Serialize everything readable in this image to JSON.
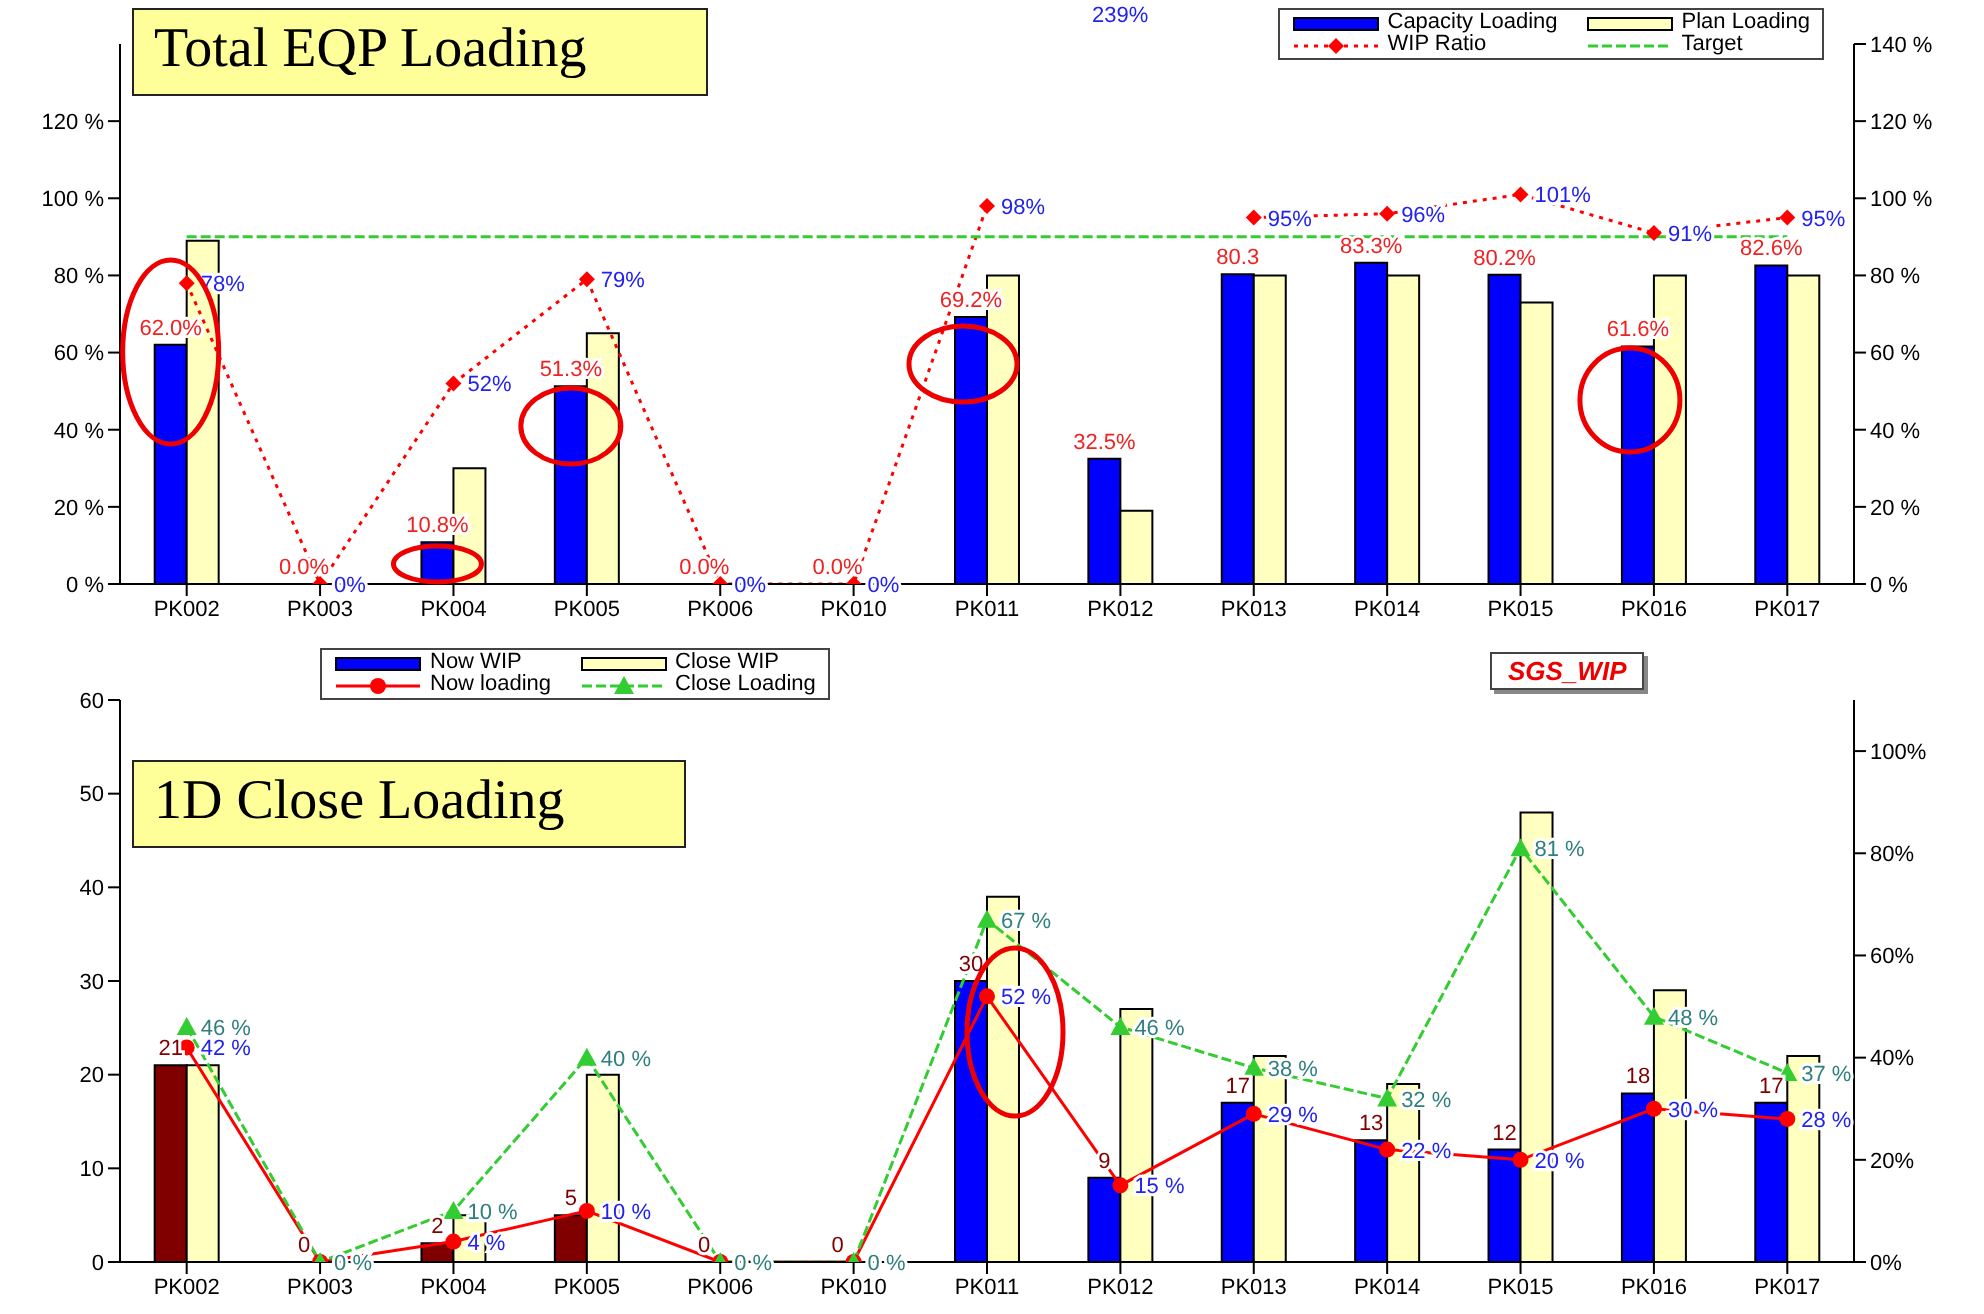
{
  "chart_data": [
    {
      "type": "bar",
      "title": "Total EQP Loading",
      "categories": [
        "PK002",
        "PK003",
        "PK004",
        "PK005",
        "PK006",
        "PK010",
        "PK011",
        "PK012",
        "PK013",
        "PK014",
        "PK015",
        "PK016",
        "PK017"
      ],
      "ylim": [
        0,
        140
      ],
      "yticks": [
        {
          "value": 0,
          "label": "0 %"
        },
        {
          "value": 20,
          "label": "20 %"
        },
        {
          "value": 40,
          "label": "40 %"
        },
        {
          "value": 60,
          "label": "60 %"
        },
        {
          "value": 80,
          "label": "80 %"
        },
        {
          "value": 100,
          "label": "100 %"
        },
        {
          "value": 120,
          "label": "120 %"
        }
      ],
      "y2lim": [
        0,
        140
      ],
      "y2ticks": [
        {
          "value": 0,
          "label": "0 %"
        },
        {
          "value": 20,
          "label": "20 %"
        },
        {
          "value": 40,
          "label": "40 %"
        },
        {
          "value": 60,
          "label": "60 %"
        },
        {
          "value": 80,
          "label": "80 %"
        },
        {
          "value": 100,
          "label": "100 %"
        },
        {
          "value": 120,
          "label": "120 %"
        },
        {
          "value": 140,
          "label": "140 %"
        }
      ],
      "grid": false,
      "legend": "top right",
      "series": [
        {
          "name": "Capacity Loading",
          "color": "#0000ff",
          "values": [
            62.0,
            0,
            10.8,
            51.3,
            0,
            0,
            69.2,
            32.5,
            80.3,
            83.3,
            80.2,
            61.6,
            82.6
          ],
          "value_labels": [
            "62.0%",
            "0.0%",
            "10.8%",
            "51.3%",
            "0.0%",
            "0.0%",
            "69.2%",
            "32.5%",
            "80.3",
            "83.3%",
            "80.2%",
            "61.6%",
            "82.6%"
          ]
        },
        {
          "name": "Plan Loading",
          "color": "#ffffc0",
          "values": [
            89,
            0,
            30,
            65,
            0,
            0,
            80,
            19,
            80,
            80,
            73,
            80,
            80
          ]
        },
        {
          "name": "WIP Ratio",
          "type": "line",
          "axis": "y2",
          "color": "#ff0000",
          "line_style": "dotted",
          "marker": "diamond",
          "values": [
            78,
            0,
            52,
            79,
            0,
            0,
            98,
            null,
            95,
            96,
            101,
            91,
            95
          ],
          "value_labels": [
            "78%",
            "0%",
            "52%",
            "79%",
            "0%",
            "0%",
            "98%",
            null,
            "95%",
            "96%",
            "101%",
            "91%",
            "95%"
          ]
        },
        {
          "name": "Target",
          "type": "line",
          "color": "#33cc33",
          "line_style": "dashed",
          "marker": "none",
          "values": [
            90,
            90,
            90,
            90,
            90,
            90,
            90,
            90,
            90,
            90,
            90,
            90,
            90
          ]
        }
      ],
      "annotations": [
        "239%"
      ]
    },
    {
      "type": "bar",
      "title": "1D Close Loading",
      "categories": [
        "PK002",
        "PK003",
        "PK004",
        "PK005",
        "PK006",
        "PK010",
        "PK011",
        "PK012",
        "PK013",
        "PK014",
        "PK015",
        "PK016",
        "PK017"
      ],
      "ylim": [
        0,
        60
      ],
      "yticks": [
        0,
        10,
        20,
        30,
        40,
        50,
        60
      ],
      "y2lim": [
        0,
        110
      ],
      "y2ticks": [
        {
          "value": 0,
          "label": "0%"
        },
        {
          "value": 20,
          "label": "20%"
        },
        {
          "value": 40,
          "label": "40%"
        },
        {
          "value": 60,
          "label": "60%"
        },
        {
          "value": 80,
          "label": "80%"
        },
        {
          "value": 100,
          "label": "100%"
        }
      ],
      "grid": false,
      "legend": "top left",
      "series": [
        {
          "name": "Now WIP",
          "color": "#0000ff",
          "colors": [
            "#800000",
            "#800000",
            "#800000",
            "#800000",
            "#800000",
            "#800000",
            "#0000ff",
            "#0000ff",
            "#0000ff",
            "#0000ff",
            "#0000ff",
            "#0000ff",
            "#0000ff"
          ],
          "values": [
            21,
            0,
            2,
            5,
            0,
            0,
            30,
            9,
            17,
            13,
            12,
            18,
            17
          ],
          "value_labels": [
            "21",
            "0",
            "2",
            "5",
            "0",
            "0",
            "30",
            "9",
            "17",
            "13",
            "12",
            "18",
            "17"
          ]
        },
        {
          "name": "Close WIP",
          "color": "#ffffc0",
          "values": [
            21,
            0,
            5,
            20,
            0,
            0,
            39,
            27,
            22,
            19,
            48,
            29,
            22
          ]
        },
        {
          "name": "Now loading",
          "type": "line",
          "axis": "y2",
          "color": "#ff0000",
          "line_style": "solid",
          "marker": "circle",
          "values": [
            42,
            0,
            4,
            10,
            0,
            0,
            52,
            15,
            29,
            22,
            20,
            30,
            28
          ],
          "value_labels": [
            "42 %",
            null,
            "4 %",
            "10 %",
            null,
            null,
            "52 %",
            "15 %",
            "29 %",
            "22 %",
            "20 %",
            "30 %",
            "28 %"
          ]
        },
        {
          "name": "Close Loading",
          "type": "line",
          "axis": "y2",
          "color": "#33cc33",
          "line_style": "dashed",
          "marker": "triangle",
          "values": [
            46,
            0,
            10,
            40,
            0,
            0,
            67,
            46,
            38,
            32,
            81,
            48,
            37
          ],
          "value_labels": [
            "46 %",
            "0 %",
            "10 %",
            "40 %",
            "0 %",
            "0 %",
            "67 %",
            "46 %",
            "38 %",
            "32 %",
            "81 %",
            "48 %",
            "37 %"
          ]
        }
      ],
      "annotations": [
        "SGS_WIP"
      ]
    }
  ]
}
